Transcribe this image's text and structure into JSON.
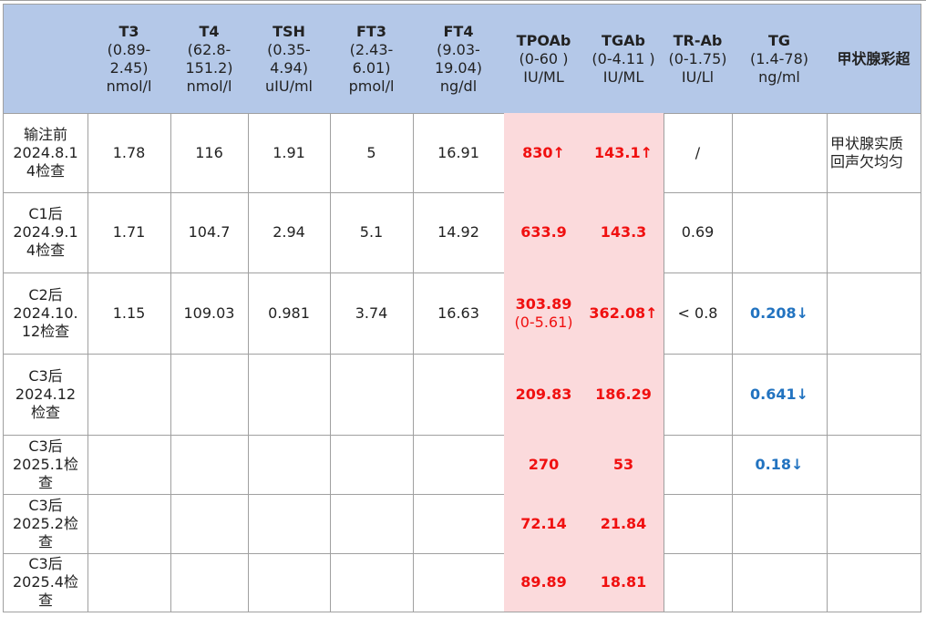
{
  "table": {
    "header": [
      [
        "T3",
        "(0.89-",
        "2.45)",
        "nmol/l"
      ],
      [
        "T4",
        "(62.8-",
        "151.2)",
        "nmol/l"
      ],
      [
        "TSH",
        "(0.35-",
        "4.94)",
        "uIU/ml"
      ],
      [
        "FT3",
        "(2.43-",
        "6.01)",
        "pmol/l"
      ],
      [
        "FT4",
        "(9.03-",
        "19.04)",
        "ng/dl"
      ],
      [
        "TPOAb",
        "(0-60 )",
        "IU/ML"
      ],
      [
        "TGAb",
        "(0-4.11 )",
        "IU/ML"
      ],
      [
        "TR-Ab",
        "(0-1.75)",
        "IU/Ll"
      ],
      [
        "TG",
        "(1.4-78)",
        "ng/ml"
      ],
      [
        "甲状腺彩超"
      ]
    ],
    "rows": [
      {
        "label": [
          "输注前",
          "2024.8.1",
          "4检查"
        ],
        "cells": [
          [
            "1.78"
          ],
          [
            "116"
          ],
          [
            "1.91"
          ],
          [
            "5"
          ],
          [
            "16.91"
          ],
          [
            "830↑"
          ],
          [
            "143.1↑"
          ],
          [
            "/"
          ],
          null,
          [
            "甲状腺实质",
            "回声欠均匀"
          ]
        ]
      },
      {
        "label": [
          "C1后",
          "2024.9.1",
          "4检查"
        ],
        "cells": [
          [
            "1.71"
          ],
          [
            "104.7"
          ],
          [
            "2.94"
          ],
          [
            "5.1"
          ],
          [
            "14.92"
          ],
          [
            "633.9"
          ],
          [
            "143.3"
          ],
          [
            "0.69"
          ],
          null,
          null
        ]
      },
      {
        "label": [
          "C2后",
          "2024.10.",
          "12检查"
        ],
        "cells": [
          [
            "1.15"
          ],
          [
            "109.03"
          ],
          [
            "0.981"
          ],
          [
            "3.74"
          ],
          [
            "16.63"
          ],
          [
            "303.89",
            "(0-5.61)"
          ],
          [
            "362.08↑"
          ],
          [
            "< 0.8"
          ],
          [
            "0.208↓"
          ],
          null
        ]
      },
      {
        "label": [
          "C3后",
          "2024.12",
          "检查"
        ],
        "cells": [
          null,
          null,
          null,
          null,
          null,
          [
            "209.83"
          ],
          [
            "186.29"
          ],
          null,
          [
            "0.641↓"
          ],
          null
        ]
      },
      {
        "label": [
          "C3后",
          "2025.1检",
          "查"
        ],
        "cells": [
          null,
          null,
          null,
          null,
          null,
          [
            "270"
          ],
          [
            "53"
          ],
          null,
          [
            "0.18↓"
          ],
          null
        ]
      },
      {
        "label": [
          "C3后",
          "2025.2检",
          "查"
        ],
        "cells": [
          null,
          null,
          null,
          null,
          null,
          [
            "72.14"
          ],
          [
            "21.84"
          ],
          null,
          null,
          null
        ]
      },
      {
        "label": [
          "C3后",
          "2025.4检",
          "查"
        ],
        "cells": [
          null,
          null,
          null,
          null,
          null,
          [
            "89.89"
          ],
          [
            "18.81"
          ],
          null,
          null,
          null
        ]
      }
    ]
  }
}
